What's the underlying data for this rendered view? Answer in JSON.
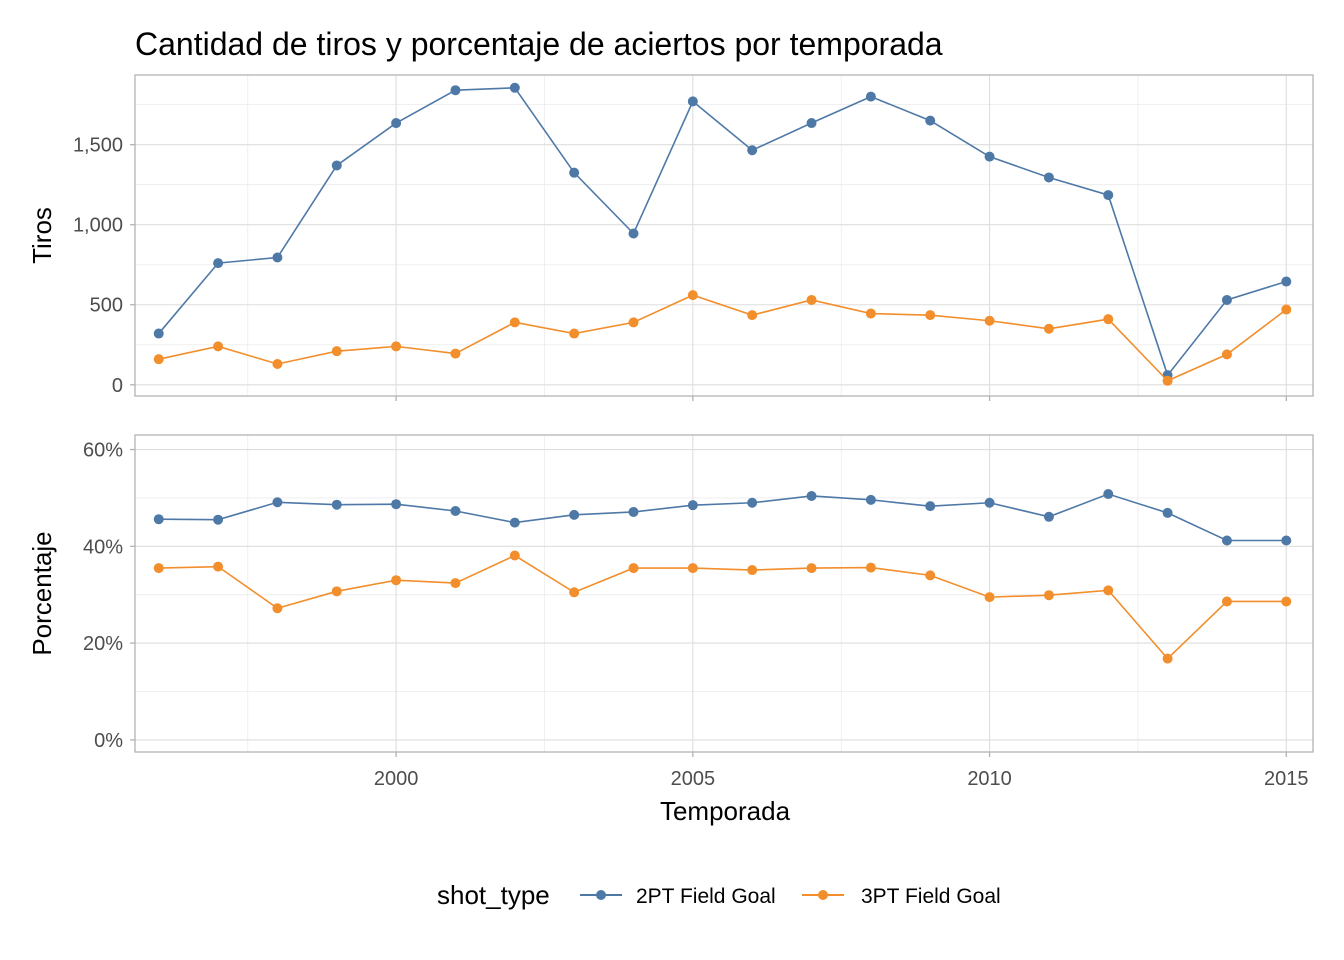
{
  "chart_data": {
    "type": "line",
    "title": "Cantidad de tiros y porcentaje de aciertos por temporada",
    "xlabel": "Temporada",
    "x": [
      1996,
      1997,
      1998,
      1999,
      2000,
      2001,
      2002,
      2003,
      2004,
      2005,
      2006,
      2007,
      2008,
      2009,
      2010,
      2011,
      2012,
      2013,
      2014,
      2015
    ],
    "x_ticks": [
      "2000",
      "2005",
      "2010",
      "2015"
    ],
    "x_tick_values": [
      2000,
      2005,
      2010,
      2015
    ],
    "xlim": [
      1995.6,
      2015.45
    ],
    "grid": true,
    "legend": {
      "position": "bottom",
      "title": "shot_type",
      "entries": [
        "2PT Field Goal",
        "3PT Field Goal"
      ]
    },
    "colors": {
      "2PT Field Goal": "#4e79a7",
      "3PT Field Goal": "#f28e2b"
    },
    "panels": [
      {
        "ylabel": "Tiros",
        "ylim": [
          -70,
          1935
        ],
        "y_ticks": [
          "0",
          "500",
          "1,000",
          "1,500"
        ],
        "y_tick_values": [
          0,
          500,
          1000,
          1500
        ],
        "series": [
          {
            "name": "2PT Field Goal",
            "values": [
              320,
              760,
              795,
              1370,
              1635,
              1840,
              1855,
              1325,
              945,
              1770,
              1465,
              1635,
              1800,
              1650,
              1425,
              1295,
              1185,
              60,
              530,
              645
            ]
          },
          {
            "name": "3PT Field Goal",
            "values": [
              160,
              240,
              130,
              210,
              240,
              195,
              390,
              320,
              390,
              560,
              435,
              530,
              445,
              435,
              400,
              350,
              410,
              25,
              190,
              470
            ]
          }
        ]
      },
      {
        "ylabel": "Porcentaje",
        "ylim": [
          -2.5,
          63
        ],
        "y_ticks": [
          "0%",
          "20%",
          "40%",
          "60%"
        ],
        "y_tick_values": [
          0,
          20,
          40,
          60
        ],
        "series": [
          {
            "name": "2PT Field Goal",
            "values": [
              45.6,
              45.5,
              49.1,
              48.6,
              48.7,
              47.3,
              44.9,
              46.5,
              47.1,
              48.5,
              49.0,
              50.4,
              49.6,
              48.3,
              49.0,
              46.1,
              50.8,
              46.9,
              41.2,
              41.2
            ]
          },
          {
            "name": "3PT Field Goal",
            "values": [
              35.5,
              35.8,
              27.2,
              30.7,
              33.0,
              32.4,
              38.1,
              30.5,
              35.5,
              35.5,
              35.1,
              35.5,
              35.6,
              34.0,
              29.5,
              29.9,
              30.9,
              16.8,
              28.6,
              28.6
            ]
          }
        ]
      }
    ]
  }
}
